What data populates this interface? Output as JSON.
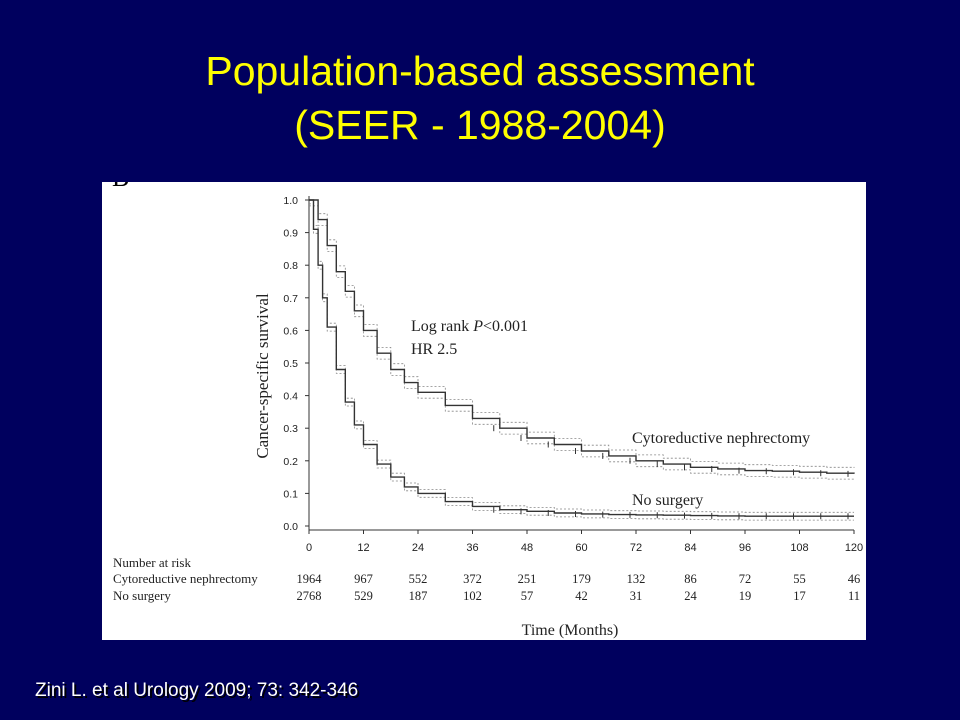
{
  "slide": {
    "title_line1": "Population-based assessment",
    "title_line2": "(SEER - 1988-2004)",
    "citation": "Zini L. et al Urology 2009; 73: 342-346"
  },
  "colors": {
    "background": "#00005e",
    "title": "#ffff00",
    "citation": "#ffffff",
    "curve": "#333333"
  },
  "chart_data": {
    "type": "line",
    "panel_label": "B",
    "xlabel": "Time (Months)",
    "ylabel": "Cancer-specific survival",
    "xlim": [
      0,
      120
    ],
    "ylim": [
      0,
      1.0
    ],
    "x_ticks": [
      "0",
      "12",
      "24",
      "36",
      "48",
      "60",
      "72",
      "84",
      "96",
      "108",
      "120"
    ],
    "y_ticks": [
      "0.0",
      "0.1",
      "0.2",
      "0.3",
      "0.4",
      "0.5",
      "0.6",
      "0.7",
      "0.8",
      "0.9",
      "1.0"
    ],
    "grid": false,
    "annotation": {
      "line1_prefix": "Log rank ",
      "line1_italic": "P",
      "line1_suffix": "<0.001",
      "line2": "HR 2.5"
    },
    "series": [
      {
        "name": "Cytoreductive nephrectomy",
        "x": [
          0,
          2,
          4,
          6,
          8,
          10,
          12,
          15,
          18,
          21,
          24,
          30,
          36,
          42,
          48,
          54,
          60,
          66,
          72,
          78,
          84,
          90,
          96,
          102,
          108,
          114,
          120
        ],
        "y": [
          1.0,
          0.94,
          0.86,
          0.78,
          0.72,
          0.66,
          0.6,
          0.53,
          0.48,
          0.44,
          0.41,
          0.37,
          0.33,
          0.3,
          0.27,
          0.25,
          0.23,
          0.215,
          0.2,
          0.19,
          0.18,
          0.175,
          0.17,
          0.168,
          0.165,
          0.162,
          0.16
        ]
      },
      {
        "name": "No surgery",
        "x": [
          0,
          1,
          2,
          3,
          4,
          6,
          8,
          10,
          12,
          15,
          18,
          21,
          24,
          30,
          36,
          42,
          48,
          54,
          60,
          66,
          72,
          78,
          84,
          90,
          96,
          102,
          108,
          114,
          120
        ],
        "y": [
          1.0,
          0.91,
          0.8,
          0.7,
          0.61,
          0.48,
          0.38,
          0.31,
          0.25,
          0.19,
          0.15,
          0.12,
          0.1,
          0.075,
          0.06,
          0.05,
          0.045,
          0.04,
          0.037,
          0.035,
          0.034,
          0.033,
          0.032,
          0.031,
          0.03,
          0.03,
          0.03,
          0.03,
          0.03
        ]
      }
    ],
    "risk_table": {
      "header": "Number at risk",
      "rows": [
        {
          "label": "Cytoreductive nephrectomy",
          "values": [
            "1964",
            "967",
            "552",
            "372",
            "251",
            "179",
            "132",
            "86",
            "72",
            "55",
            "46"
          ]
        },
        {
          "label": "No surgery",
          "values": [
            "2768",
            "529",
            "187",
            "102",
            "57",
            "42",
            "31",
            "24",
            "19",
            "17",
            "11"
          ]
        }
      ]
    }
  }
}
